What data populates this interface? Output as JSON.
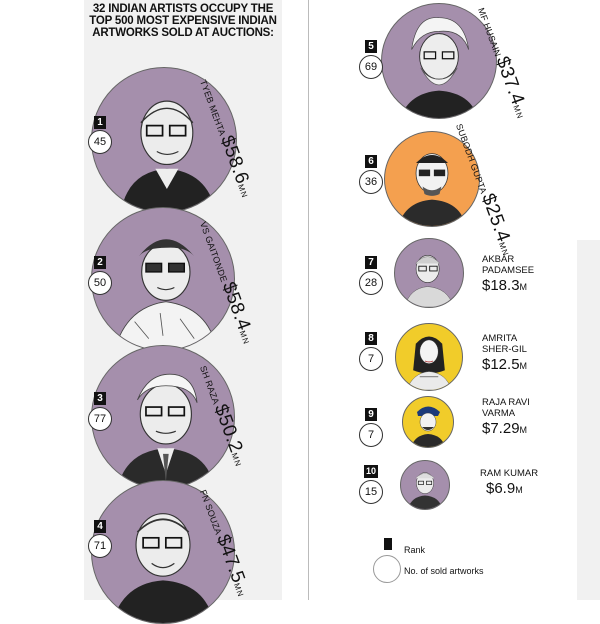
{
  "title": "32 INDIAN ARTISTS OCCUPY THE TOP 500 MOST EXPENSIVE INDIAN ARTWORKS SOLD AT AUCTIONS:",
  "colors": {
    "purple": "#a58fac",
    "orange": "#f4a04f",
    "yellow": "#f1cc2a",
    "panel": "#f1f1f1"
  },
  "artists": [
    {
      "rank": "1",
      "count": "45",
      "name": "TYEB MEHTA",
      "amount": "$58.6",
      "unit": "MN",
      "color": "purple"
    },
    {
      "rank": "2",
      "count": "50",
      "name": "VS GAITONDE",
      "amount": "$58.4",
      "unit": "MN",
      "color": "purple"
    },
    {
      "rank": "3",
      "count": "77",
      "name": "SH RAZA",
      "amount": "$50.2",
      "unit": "MN",
      "color": "purple"
    },
    {
      "rank": "4",
      "count": "71",
      "name": "FN SOUZA",
      "amount": "$47.5",
      "unit": "MN",
      "color": "purple"
    },
    {
      "rank": "5",
      "count": "69",
      "name": "MF HUSAIN",
      "amount": "$37.4",
      "unit": "MN",
      "color": "purple"
    },
    {
      "rank": "6",
      "count": "36",
      "name": "SUBODH GUPTA",
      "amount": "$25.4",
      "unit": "MN",
      "color": "orange"
    },
    {
      "rank": "7",
      "count": "28",
      "name_line1": "AKBAR",
      "name_line2": "PADAMSEE",
      "amount": "$18.3",
      "unit": "M",
      "color": "purple"
    },
    {
      "rank": "8",
      "count": "7",
      "name_line1": "AMRITA",
      "name_line2": "SHER-GIL",
      "amount": "$12.5",
      "unit": "M",
      "color": "yellow"
    },
    {
      "rank": "9",
      "count": "7",
      "name_line1": "RAJA RAVI",
      "name_line2": "VARMA",
      "amount": "$7.29",
      "unit": "M",
      "color": "yellow"
    },
    {
      "rank": "10",
      "count": "15",
      "name_line1": "RAM KUMAR",
      "amount": "$6.9",
      "unit": "M",
      "color": "purple"
    }
  ],
  "legend": {
    "rank_label": "Rank",
    "count_label": "No. of sold artworks"
  }
}
